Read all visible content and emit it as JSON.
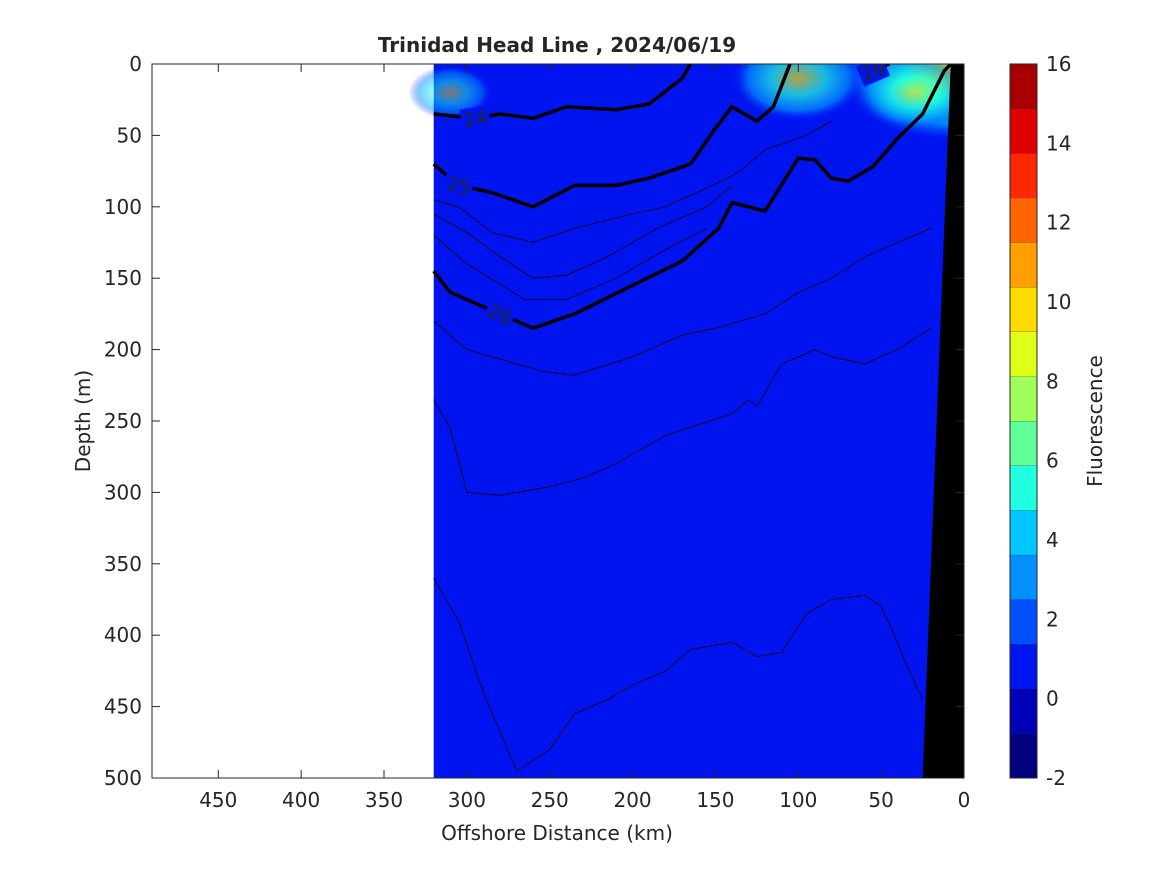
{
  "chart_data": {
    "type": "contour",
    "title": "Trinidad Head Line , 2024/06/19",
    "xlabel": "Offshore Distance (km)",
    "ylabel": "Depth (m)",
    "colorbar_label": "Fluorescence",
    "xlim": [
      490,
      0
    ],
    "ylim": [
      0,
      500
    ],
    "y_reversed": true,
    "x_ticks": [
      450,
      400,
      350,
      300,
      250,
      200,
      150,
      100,
      50,
      0
    ],
    "y_ticks": [
      0,
      50,
      100,
      150,
      200,
      250,
      300,
      350,
      400,
      450,
      500
    ],
    "colorbar_range": [
      -2,
      16
    ],
    "colorbar_ticks": [
      -2,
      0,
      2,
      4,
      6,
      8,
      10,
      12,
      14,
      16
    ],
    "colorbar_colors": [
      "#000080",
      "#0000b8",
      "#0014f0",
      "#0050ff",
      "#0090ff",
      "#00c8ff",
      "#20ffe0",
      "#60ff98",
      "#a0ff58",
      "#e0ff18",
      "#ffdc00",
      "#ffa000",
      "#ff6400",
      "#ff2800",
      "#e00000",
      "#a80000"
    ],
    "background_fill": "#0014f0",
    "data_extent_km": [
      0,
      320
    ],
    "fluorescence_patches": [
      {
        "center_km": 10,
        "depth_m": 5,
        "value": 10
      },
      {
        "center_km": 100,
        "depth_m": 10,
        "value": 5
      },
      {
        "center_km": 30,
        "depth_m": 20,
        "value": 4
      },
      {
        "center_km": 310,
        "depth_m": 20,
        "value": 2
      }
    ],
    "density_contours": [
      {
        "label": "24",
        "points": [
          [
            320,
            35
          ],
          [
            295,
            38
          ],
          [
            280,
            35
          ],
          [
            260,
            38
          ],
          [
            240,
            30
          ],
          [
            210,
            32
          ],
          [
            190,
            28
          ],
          [
            170,
            10
          ],
          [
            165,
            0
          ]
        ]
      },
      {
        "label": "25",
        "points": [
          [
            320,
            70
          ],
          [
            305,
            85
          ],
          [
            285,
            90
          ],
          [
            260,
            100
          ],
          [
            235,
            85
          ],
          [
            210,
            85
          ],
          [
            190,
            80
          ],
          [
            165,
            70
          ],
          [
            150,
            45
          ],
          [
            140,
            30
          ],
          [
            125,
            40
          ],
          [
            115,
            30
          ],
          [
            105,
            0
          ]
        ]
      },
      {
        "label": "26",
        "points": [
          [
            320,
            145
          ],
          [
            310,
            160
          ],
          [
            280,
            175
          ],
          [
            260,
            185
          ],
          [
            235,
            175
          ],
          [
            200,
            155
          ],
          [
            170,
            138
          ],
          [
            148,
            115
          ],
          [
            140,
            97
          ],
          [
            120,
            103
          ],
          [
            100,
            66
          ],
          [
            90,
            67
          ],
          [
            80,
            80
          ],
          [
            70,
            82
          ],
          [
            55,
            72
          ],
          [
            40,
            52
          ],
          [
            25,
            35
          ],
          [
            12,
            5
          ],
          [
            8,
            0
          ]
        ]
      },
      {
        "label": "26",
        "points": [
          [
            60,
            0
          ],
          [
            55,
            5
          ],
          [
            45,
            0
          ]
        ]
      }
    ],
    "fluorescence_contours": [
      [
        [
          320,
          95
        ],
        [
          305,
          100
        ],
        [
          285,
          118
        ],
        [
          260,
          125
        ],
        [
          235,
          115
        ],
        [
          200,
          105
        ],
        [
          180,
          100
        ],
        [
          150,
          84
        ],
        [
          135,
          75
        ],
        [
          120,
          60
        ],
        [
          95,
          50
        ],
        [
          80,
          40
        ]
      ],
      [
        [
          320,
          105
        ],
        [
          300,
          118
        ],
        [
          280,
          135
        ],
        [
          260,
          150
        ],
        [
          240,
          148
        ],
        [
          215,
          135
        ],
        [
          185,
          115
        ],
        [
          155,
          100
        ],
        [
          140,
          85
        ]
      ],
      [
        [
          320,
          120
        ],
        [
          300,
          140
        ],
        [
          265,
          165
        ],
        [
          240,
          165
        ],
        [
          210,
          150
        ],
        [
          180,
          130
        ],
        [
          155,
          115
        ]
      ],
      [
        [
          320,
          180
        ],
        [
          300,
          200
        ],
        [
          255,
          215
        ],
        [
          235,
          218
        ],
        [
          200,
          205
        ],
        [
          170,
          190
        ],
        [
          150,
          185
        ],
        [
          120,
          175
        ],
        [
          100,
          160
        ],
        [
          80,
          150
        ],
        [
          60,
          135
        ],
        [
          40,
          125
        ],
        [
          20,
          115
        ]
      ],
      [
        [
          320,
          235
        ],
        [
          310,
          255
        ],
        [
          300,
          300
        ],
        [
          280,
          302
        ],
        [
          250,
          296
        ],
        [
          230,
          290
        ],
        [
          210,
          280
        ],
        [
          180,
          260
        ],
        [
          140,
          245
        ],
        [
          130,
          235
        ],
        [
          125,
          240
        ],
        [
          110,
          210
        ],
        [
          90,
          200
        ],
        [
          80,
          205
        ],
        [
          60,
          210
        ],
        [
          40,
          200
        ],
        [
          20,
          185
        ]
      ],
      [
        [
          320,
          360
        ],
        [
          305,
          390
        ],
        [
          290,
          440
        ],
        [
          270,
          495
        ],
        [
          250,
          480
        ],
        [
          235,
          455
        ],
        [
          215,
          445
        ],
        [
          200,
          435
        ],
        [
          180,
          425
        ],
        [
          165,
          410
        ],
        [
          140,
          405
        ],
        [
          125,
          415
        ],
        [
          110,
          412
        ],
        [
          95,
          385
        ],
        [
          80,
          375
        ],
        [
          60,
          372
        ],
        [
          50,
          380
        ],
        [
          42,
          400
        ],
        [
          35,
          420
        ],
        [
          25,
          445
        ]
      ]
    ],
    "bathymetry": {
      "points": [
        [
          25,
          500
        ],
        [
          8,
          0
        ],
        [
          0,
          0
        ],
        [
          0,
          500
        ]
      ],
      "color": "#000000"
    }
  }
}
